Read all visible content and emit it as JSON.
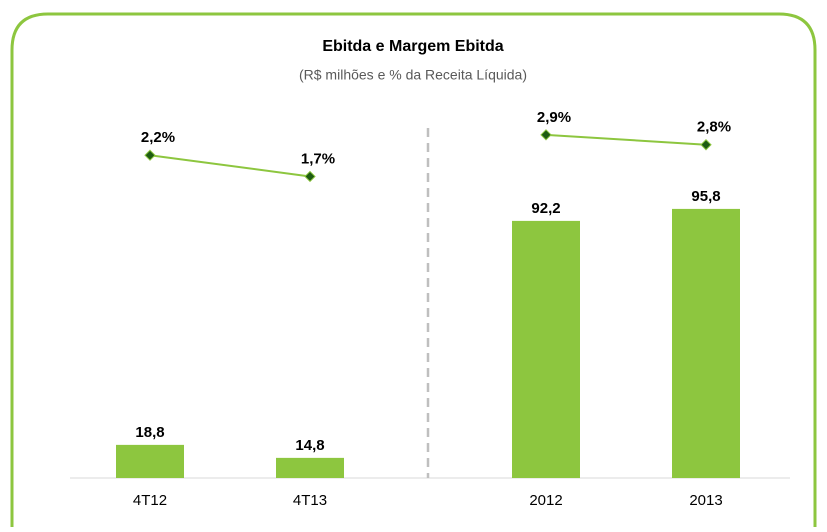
{
  "header": {
    "title": "Ebitda e Margem Ebitda",
    "subtitle": "(R$ milhões  e % da Receita Líquida)"
  },
  "chart_data": [
    {
      "type": "bar",
      "categories": [
        "4T12",
        "4T13"
      ],
      "ylim": [
        8.6,
        125
      ],
      "y2lim": [
        -5.4,
        3.5
      ],
      "series": [
        {
          "type": "bar",
          "color": "#8dc63f",
          "values": [
            18.8,
            14.8
          ],
          "value_labels": [
            "18,8",
            "14,8"
          ]
        },
        {
          "type": "line",
          "axis": "y2",
          "color": "#8dc63f",
          "marker_color": "#1e5c12",
          "values": [
            2.2,
            1.7
          ],
          "value_labels": [
            "2,2%",
            "1,7%"
          ]
        }
      ]
    },
    {
      "type": "bar",
      "categories": [
        "2012",
        "2013"
      ],
      "ylim": [
        15,
        128.5
      ],
      "y2lim": [
        -0.55,
        3.25
      ],
      "series": [
        {
          "type": "bar",
          "color": "#8dc63f",
          "values": [
            92.2,
            95.8
          ],
          "value_labels": [
            "92,2",
            "95,8"
          ]
        },
        {
          "type": "line",
          "axis": "y2",
          "color": "#8dc63f",
          "marker_color": "#1e5c12",
          "values": [
            2.9,
            2.8
          ],
          "value_labels": [
            "2,9%",
            "2,8%"
          ]
        }
      ]
    }
  ]
}
